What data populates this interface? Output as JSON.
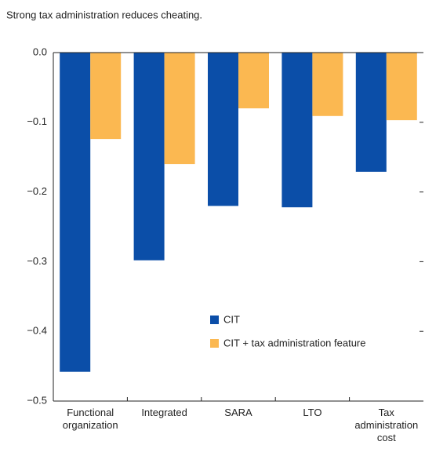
{
  "chart_data": {
    "type": "bar",
    "title": "Strong tax administration reduces cheating.",
    "categories": [
      "Functional organization",
      "Integrated",
      "SARA",
      "LTO",
      "Tax administration cost"
    ],
    "series": [
      {
        "name": "CIT",
        "color": "#0b4ea8",
        "values": [
          -0.458,
          -0.298,
          -0.22,
          -0.222,
          -0.171
        ]
      },
      {
        "name": "CIT + tax administration feature",
        "color": "#fbb851",
        "values": [
          -0.124,
          -0.16,
          -0.08,
          -0.091,
          -0.097
        ]
      }
    ],
    "ylim": [
      -0.5,
      0
    ],
    "yticks": [
      {
        "value": 0,
        "label": "0.0"
      },
      {
        "value": -0.1,
        "label": "−0.1"
      },
      {
        "value": -0.2,
        "label": "−0.2"
      },
      {
        "value": -0.3,
        "label": "−0.3"
      },
      {
        "value": -0.4,
        "label": "−0.4"
      },
      {
        "value": -0.5,
        "label": "−0.5"
      }
    ]
  }
}
